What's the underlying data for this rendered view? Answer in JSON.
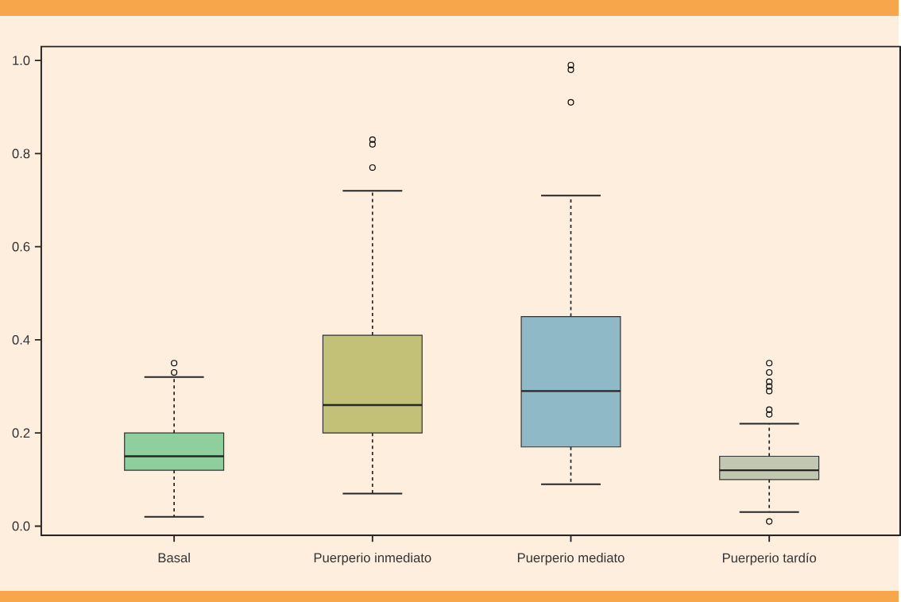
{
  "chart_data": {
    "type": "box",
    "categories": [
      "Basal",
      "Puerperio inmediato",
      "Puerperio mediato",
      "Puerperio tardío"
    ],
    "boxes": [
      {
        "low": 0.02,
        "q1": 0.12,
        "median": 0.15,
        "q3": 0.2,
        "high": 0.32,
        "outliers": [
          0.33,
          0.35
        ]
      },
      {
        "low": 0.07,
        "q1": 0.2,
        "median": 0.26,
        "q3": 0.41,
        "high": 0.72,
        "outliers": [
          0.77,
          0.82,
          0.83
        ]
      },
      {
        "low": 0.09,
        "q1": 0.17,
        "median": 0.29,
        "q3": 0.45,
        "high": 0.71,
        "outliers": [
          0.91,
          0.98,
          0.99
        ]
      },
      {
        "low": 0.03,
        "q1": 0.1,
        "median": 0.12,
        "q3": 0.15,
        "high": 0.22,
        "outliers": [
          0.01,
          0.24,
          0.25,
          0.29,
          0.3,
          0.31,
          0.33,
          0.35
        ]
      }
    ],
    "colors": [
      "#8ecf9d",
      "#c3c177",
      "#90b9c8",
      "#c1c7b0"
    ],
    "ylim": [
      -0.02,
      1.03
    ],
    "yticks": [
      {
        "value": 0,
        "label": "0.0"
      },
      0.2,
      0.4,
      0.6,
      0.8,
      {
        "value": 1,
        "label": "1.0"
      }
    ]
  }
}
